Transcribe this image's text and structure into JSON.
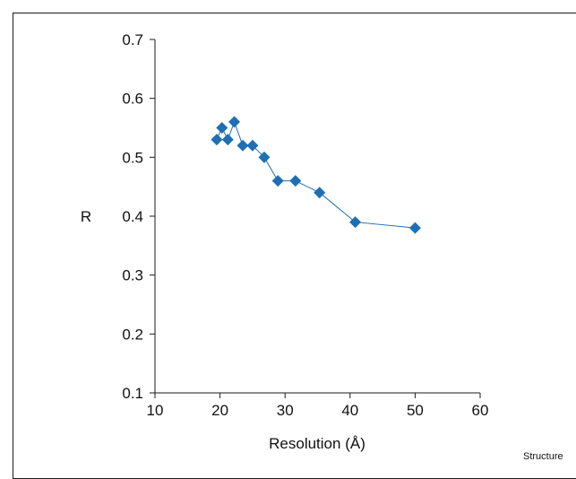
{
  "chart_data": {
    "type": "line",
    "xlabel": "Resolution (Å)",
    "ylabel": "R",
    "xlim": [
      10,
      60
    ],
    "ylim": [
      0.1,
      0.7
    ],
    "x_ticks": [
      "10",
      "20",
      "30",
      "40",
      "50",
      "60"
    ],
    "y_ticks": [
      "0.1",
      "0.2",
      "0.3",
      "0.4",
      "0.5",
      "0.6",
      "0.7"
    ],
    "grid": false,
    "legend": "none",
    "marker": "diamond",
    "color": "#1f6fb4",
    "series": [
      {
        "x": [
          19.5,
          20.3,
          21.2,
          22.2,
          23.5,
          25.0,
          26.8,
          28.9,
          31.6,
          35.3,
          40.8,
          50.0
        ],
        "y": [
          0.53,
          0.55,
          0.53,
          0.56,
          0.52,
          0.52,
          0.5,
          0.46,
          0.46,
          0.44,
          0.39,
          0.38
        ]
      }
    ]
  },
  "credit": "Structure"
}
